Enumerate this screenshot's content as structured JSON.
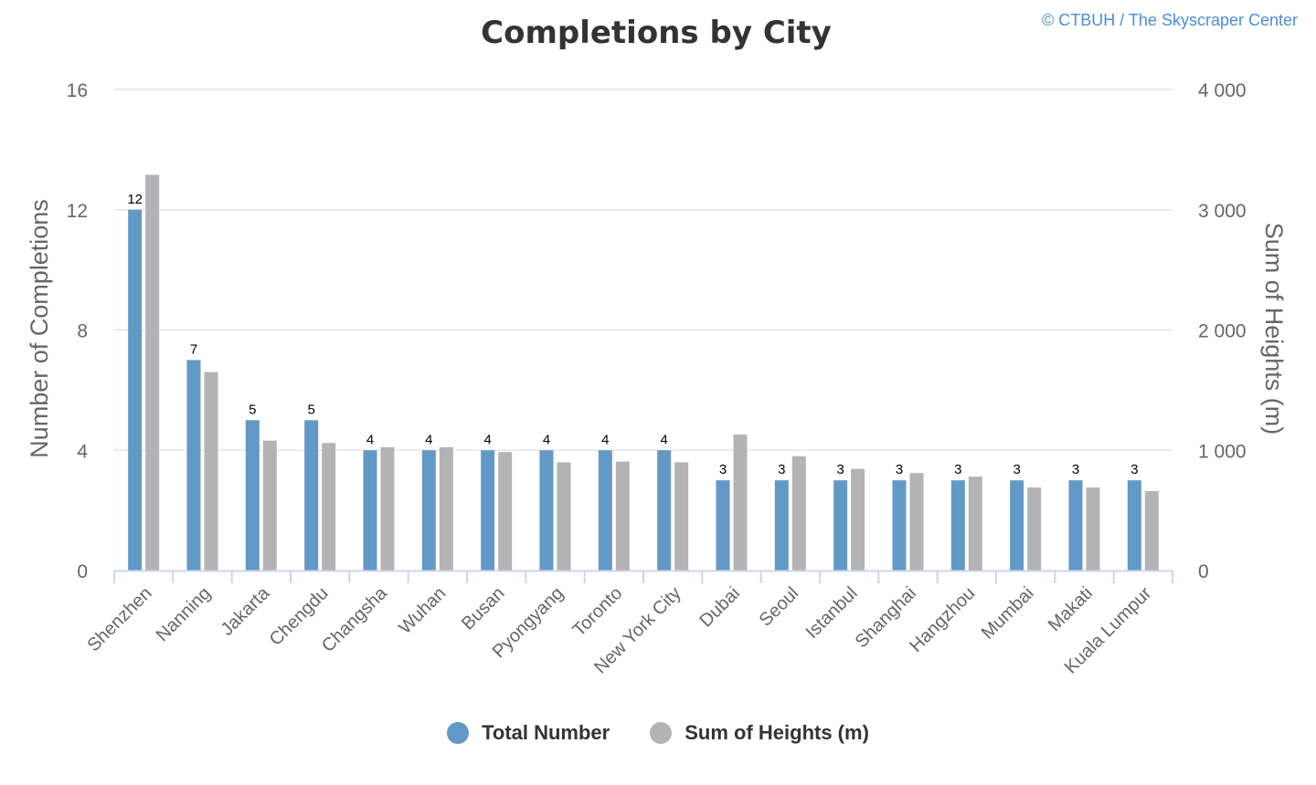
{
  "chart_data": {
    "type": "bar",
    "title": "Completions by City",
    "credit": "© CTBUH / The Skyscraper Center",
    "categories": [
      "Shenzhen",
      "Nanning",
      "Jakarta",
      "Chengdu",
      "Changsha",
      "Wuhan",
      "Busan",
      "Pyongyang",
      "Toronto",
      "New York City",
      "Dubai",
      "Seoul",
      "Istanbul",
      "Shanghai",
      "Hangzhou",
      "Mumbai",
      "Makati",
      "Kuala Lumpur"
    ],
    "series": [
      {
        "name": "Total Number",
        "axis": "left",
        "color": "#6399c6",
        "values": [
          12,
          7,
          5,
          5,
          4,
          4,
          4,
          4,
          4,
          4,
          3,
          3,
          3,
          3,
          3,
          3,
          3,
          3
        ],
        "data_labels": true
      },
      {
        "name": "Sum of Heights (m)",
        "axis": "right",
        "color": "#b3b3b5",
        "values": [
          3290,
          1650,
          1080,
          1060,
          1025,
          1025,
          985,
          900,
          905,
          900,
          1130,
          950,
          845,
          810,
          780,
          690,
          690,
          660
        ],
        "data_labels": false
      }
    ],
    "y_left": {
      "label": "Number of Completions",
      "min": 0,
      "max": 16,
      "ticks": [
        0,
        4,
        8,
        12,
        16
      ],
      "tick_labels": [
        "0",
        "4",
        "8",
        "12",
        "16"
      ]
    },
    "y_right": {
      "label": "Sum of Heights (m)",
      "min": 0,
      "max": 4000,
      "ticks": [
        0,
        1000,
        2000,
        3000,
        4000
      ],
      "tick_labels": [
        "0",
        "1 000",
        "2 000",
        "3 000",
        "4 000"
      ]
    },
    "grid": true,
    "legend_position": "bottom-center"
  },
  "colors": {
    "total": "#6399c6",
    "heights": "#b3b3b5",
    "grid": "#e6e6e6",
    "axis": "#ccd6eb",
    "credit": "#4a8fd6"
  }
}
